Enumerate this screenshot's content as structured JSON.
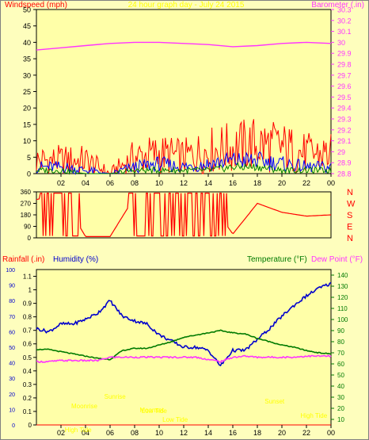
{
  "colors": {
    "background": "#fefebd",
    "plot": "#ffffa8",
    "axis": "#000000",
    "wind": "#ff0000",
    "gust": "#0000ff",
    "avg": "#008000",
    "barometer": "#ff33ff",
    "direction": "#ff0000",
    "humidity": "#0000cc",
    "temperature": "#007a00",
    "dewpoint": "#ff33ff",
    "rain": "#ff0000",
    "title": "#ffff00",
    "annot": "#ffff00"
  },
  "chart_data": [
    {
      "type": "line",
      "title": "24 hour graph day - July 24 2015",
      "ylabel": "Windspeed (mph)",
      "y2label": "Barometer (.in)",
      "ylim": [
        0,
        50
      ],
      "y2lim": [
        28.8,
        30.3
      ],
      "xticks": [
        "02",
        "04",
        "06",
        "08",
        "10",
        "12",
        "14",
        "16",
        "18",
        "20",
        "22",
        "00"
      ],
      "yticks": [
        "50",
        "45",
        "40",
        "35",
        "30",
        "25",
        "20",
        "15",
        "10",
        "5",
        "0"
      ],
      "y2ticks": [
        "30.3",
        "30.2",
        "30.1",
        "30",
        "29.9",
        "29.8",
        "29.7",
        "29.6",
        "29.5",
        "29.4",
        "29.3",
        "29.2",
        "29.1",
        "29",
        "28.9",
        "28.8"
      ],
      "x": [
        0,
        2,
        4,
        6,
        8,
        10,
        12,
        14,
        16,
        18,
        20,
        22,
        24
      ],
      "series": [
        {
          "key": "gust",
          "values": [
            4,
            4,
            4,
            0,
            5,
            6,
            5,
            7,
            8,
            9,
            8,
            6,
            6
          ]
        },
        {
          "key": "average",
          "values": [
            2,
            2,
            1,
            0,
            2,
            3,
            2,
            3,
            4,
            4,
            3,
            2,
            2
          ]
        },
        {
          "key": "low",
          "values": [
            1,
            1,
            0,
            0,
            1,
            1,
            1,
            1,
            2,
            2,
            1,
            1,
            1
          ]
        },
        {
          "key": "barometer",
          "axis": "y2",
          "values": [
            29.93,
            29.95,
            29.97,
            29.99,
            30.0,
            30.0,
            29.99,
            29.98,
            29.96,
            29.97,
            29.99,
            30.0,
            29.99
          ]
        }
      ]
    },
    {
      "type": "line",
      "yticks": [
        "360",
        "270",
        "180",
        "90",
        "0"
      ],
      "ylim": [
        0,
        360
      ],
      "compass": [
        "N",
        "W",
        "S",
        "E",
        "N"
      ],
      "xticks": [
        "02",
        "04",
        "06",
        "08",
        "10",
        "12",
        "14",
        "16",
        "18",
        "20",
        "22",
        "00"
      ],
      "x": [
        0,
        2,
        4,
        6,
        8,
        10,
        12,
        14,
        16,
        18,
        20,
        22,
        24
      ],
      "series": [
        {
          "key": "direction",
          "values": [
            300,
            340,
            10,
            10,
            320,
            10,
            340,
            300,
            30,
            270,
            200,
            170,
            180
          ]
        }
      ]
    },
    {
      "type": "line",
      "ylabel": "Rainfall (.in)",
      "ylabel2": "Humidity (%)",
      "y2label": "Temperature (°F)",
      "y2label2": "Dew Point (°F)",
      "rain_ticks": [
        "1.1",
        "1",
        "0.9",
        "0.8",
        "0.7",
        "0.6",
        "0.5",
        "0.4",
        "0.3",
        "0.2",
        "0.1",
        "0"
      ],
      "hum_ticks": [
        "100",
        "90",
        "80",
        "70",
        "60",
        "50",
        "40",
        "30",
        "20",
        "10",
        "0"
      ],
      "temp_ticks": [
        "140",
        "130",
        "120",
        "110",
        "100",
        "90",
        "80",
        "70",
        "60",
        "50",
        "40",
        "30",
        "20",
        "10"
      ],
      "ylim": [
        0,
        100
      ],
      "y2lim": [
        5,
        145
      ],
      "xticks": [
        "02",
        "04",
        "06",
        "08",
        "10",
        "12",
        "14",
        "16",
        "18",
        "20",
        "22",
        "00"
      ],
      "annotations": [
        "Sunrise",
        "Sunset",
        "Moonrise",
        "Moonset",
        "High Tide",
        "Low Tide",
        "Low Tide",
        "High Tide"
      ],
      "x": [
        0,
        1,
        2,
        3,
        4,
        5,
        6,
        7,
        8,
        9,
        10,
        11,
        12,
        13,
        14,
        15,
        16,
        17,
        18,
        19,
        20,
        21,
        22,
        23,
        24
      ],
      "series": [
        {
          "key": "humidity",
          "values": [
            62,
            60,
            65,
            65,
            68,
            72,
            80,
            70,
            67,
            65,
            58,
            54,
            50,
            50,
            48,
            38,
            48,
            48,
            55,
            62,
            70,
            77,
            83,
            88,
            91
          ]
        },
        {
          "key": "temperature",
          "axis": "y2",
          "values": [
            73,
            73,
            71,
            69,
            67,
            65,
            64,
            72,
            74,
            74,
            77,
            80,
            84,
            86,
            88,
            90,
            88,
            87,
            83,
            80,
            77,
            75,
            72,
            70,
            69
          ]
        },
        {
          "key": "dewpoint",
          "axis": "y2",
          "values": [
            62,
            62,
            63,
            63,
            63,
            63,
            66,
            66,
            66,
            66,
            66,
            66,
            66,
            66,
            64,
            62,
            66,
            67,
            66,
            66,
            66,
            66,
            67,
            67,
            67
          ]
        },
        {
          "key": "rain",
          "values": [
            0,
            0,
            0,
            0,
            0,
            0,
            0,
            0,
            0,
            0,
            0,
            0,
            0,
            0,
            0,
            0,
            0,
            0,
            0,
            0,
            0,
            0,
            0,
            0,
            0
          ]
        }
      ]
    }
  ]
}
